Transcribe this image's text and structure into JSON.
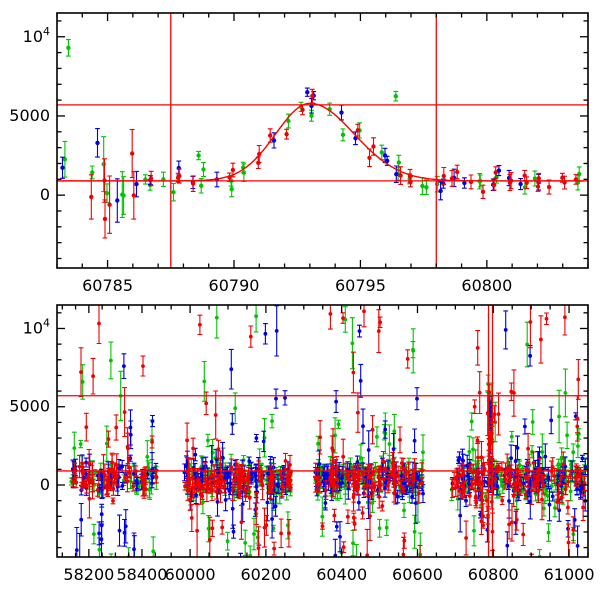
{
  "figure": {
    "background": "#ffffff",
    "frame_color": "#000000",
    "marker_line_color": "#ff0000"
  },
  "chart_data": [
    {
      "type": "scatter",
      "panel": "top",
      "title": "",
      "xlabel": "",
      "ylabel": "",
      "xlim": [
        60783.0,
        60804.0
      ],
      "ylim": [
        -4600,
        11500
      ],
      "grid": false,
      "legend": "none",
      "xticks": [
        {
          "v": 60785,
          "label": "60785"
        },
        {
          "v": 60790,
          "label": "60790"
        },
        {
          "v": 60795,
          "label": "60795"
        },
        {
          "v": 60800,
          "label": "60800"
        }
      ],
      "xminor_step": 1,
      "yticks": [
        {
          "v": 0,
          "label": "0"
        },
        {
          "v": 5000,
          "label": "5000"
        },
        {
          "v": 10000,
          "label": "10^4"
        }
      ],
      "yminor_step": 1000,
      "hlines": [
        900,
        5700
      ],
      "vlines": [
        60787.5,
        60798.0
      ],
      "model": {
        "baseline": 900,
        "amplitude": 4900,
        "t0": 60793.0,
        "sigma_rise": 1.35,
        "sigma_fall": 1.75
      },
      "gen": {
        "night_start": 60783.3,
        "night_end": 60803.8,
        "night_step": 0.55,
        "early_end": 60786.3,
        "early_scatter": 1100,
        "early_extra_err": 1500,
        "base_err": 260,
        "err_spread": 300,
        "rel_scatter": 0.16,
        "abs_scatter": 280
      },
      "series": [
        {
          "name": "band-g",
          "color": "#00c400",
          "seed": 101,
          "night_prob": 0.72,
          "outliers": [
            [
              60783.45,
              9300,
              520
            ],
            [
              60796.4,
              6250,
              300
            ],
            [
              60788.6,
              2500,
              260
            ]
          ]
        },
        {
          "name": "band-b",
          "color": "#0000e0",
          "seed": 202,
          "night_prob": 0.6,
          "outliers": [
            [
              60792.9,
              6500,
              260
            ],
            [
              60793.15,
              6280,
              260
            ],
            [
              60784.6,
              3300,
              900
            ]
          ]
        },
        {
          "name": "band-r",
          "color": "#f00000",
          "seed": 303,
          "night_prob": 0.75,
          "outliers": [
            [
              60784.9,
              -1500,
              1200
            ]
          ]
        }
      ]
    },
    {
      "type": "scatter",
      "panel": "bottom",
      "title": "",
      "xlabel": "",
      "ylabel": "",
      "segments": [
        {
          "x0": 58080,
          "x1": 58480,
          "f0": 0.0,
          "f1": 0.2
        },
        {
          "x0": 59950,
          "x1": 61050,
          "f0": 0.215,
          "f1": 1.0
        }
      ],
      "ylim": [
        -4600,
        11500
      ],
      "grid": false,
      "legend": "none",
      "xticks": [
        {
          "v": 58200,
          "label": "58200"
        },
        {
          "v": 58400,
          "label": "58400"
        },
        {
          "v": 60000,
          "label": "60000"
        },
        {
          "v": 60200,
          "label": "60200"
        },
        {
          "v": 60400,
          "label": "60400"
        },
        {
          "v": 60600,
          "label": "60600"
        },
        {
          "v": 60800,
          "label": "60800"
        },
        {
          "v": 61000,
          "label": "61000"
        }
      ],
      "xminor_step": 50,
      "yticks": [
        {
          "v": 0,
          "label": "0"
        },
        {
          "v": 5000,
          "label": "5000"
        },
        {
          "v": 10000,
          "label": "10^4"
        }
      ],
      "yminor_step": 1000,
      "hlines": [
        900,
        5700
      ],
      "vlines": [
        60787.5,
        60798.0
      ],
      "gen": {
        "band_center": 350,
        "band_sigma": 520,
        "mid_frac": 0.22,
        "mid_sigma": 2300,
        "tail_frac": 0.1,
        "tail_max": 11200,
        "err_min": 180,
        "err_max": 1100
      },
      "clusters": [
        {
          "x0": 58130,
          "x1": 58455,
          "n": 60
        },
        {
          "x0": 59985,
          "x1": 60265,
          "n": 105
        },
        {
          "x0": 60330,
          "x1": 60615,
          "n": 105
        },
        {
          "x0": 60690,
          "x1": 61045,
          "n": 120
        },
        {
          "x0": 60788,
          "x1": 60798,
          "n": 10,
          "flare": true
        }
      ],
      "series": [
        {
          "name": "band-g",
          "color": "#00c400",
          "seed": 404
        },
        {
          "name": "band-b",
          "color": "#0000e0",
          "seed": 505
        },
        {
          "name": "band-r",
          "color": "#f00000",
          "seed": 606
        }
      ]
    }
  ]
}
